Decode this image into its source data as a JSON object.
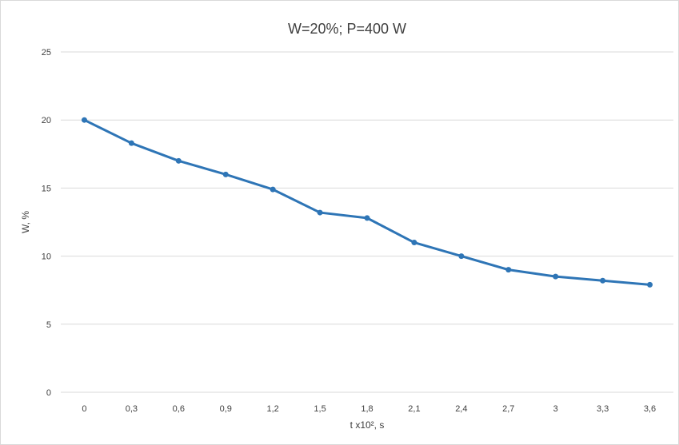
{
  "chart_data": {
    "type": "line",
    "title": "W=20%; P=400 W",
    "xlabel": "t x10², s",
    "ylabel": "W, %",
    "categories": [
      "0",
      "0,3",
      "0,6",
      "0,9",
      "1,2",
      "1,5",
      "1,8",
      "2,1",
      "2,4",
      "2,7",
      "3",
      "3,3",
      "3,6"
    ],
    "series": [
      {
        "values": [
          20,
          18.3,
          17,
          16,
          14.9,
          13.2,
          12.8,
          11,
          10,
          9,
          8.5,
          8.2,
          7.9
        ],
        "color": "#2e75b6"
      }
    ],
    "ylim": [
      0,
      25
    ],
    "yticks": [
      0,
      5,
      10,
      15,
      20,
      25
    ],
    "grid": true,
    "legend": "none"
  }
}
